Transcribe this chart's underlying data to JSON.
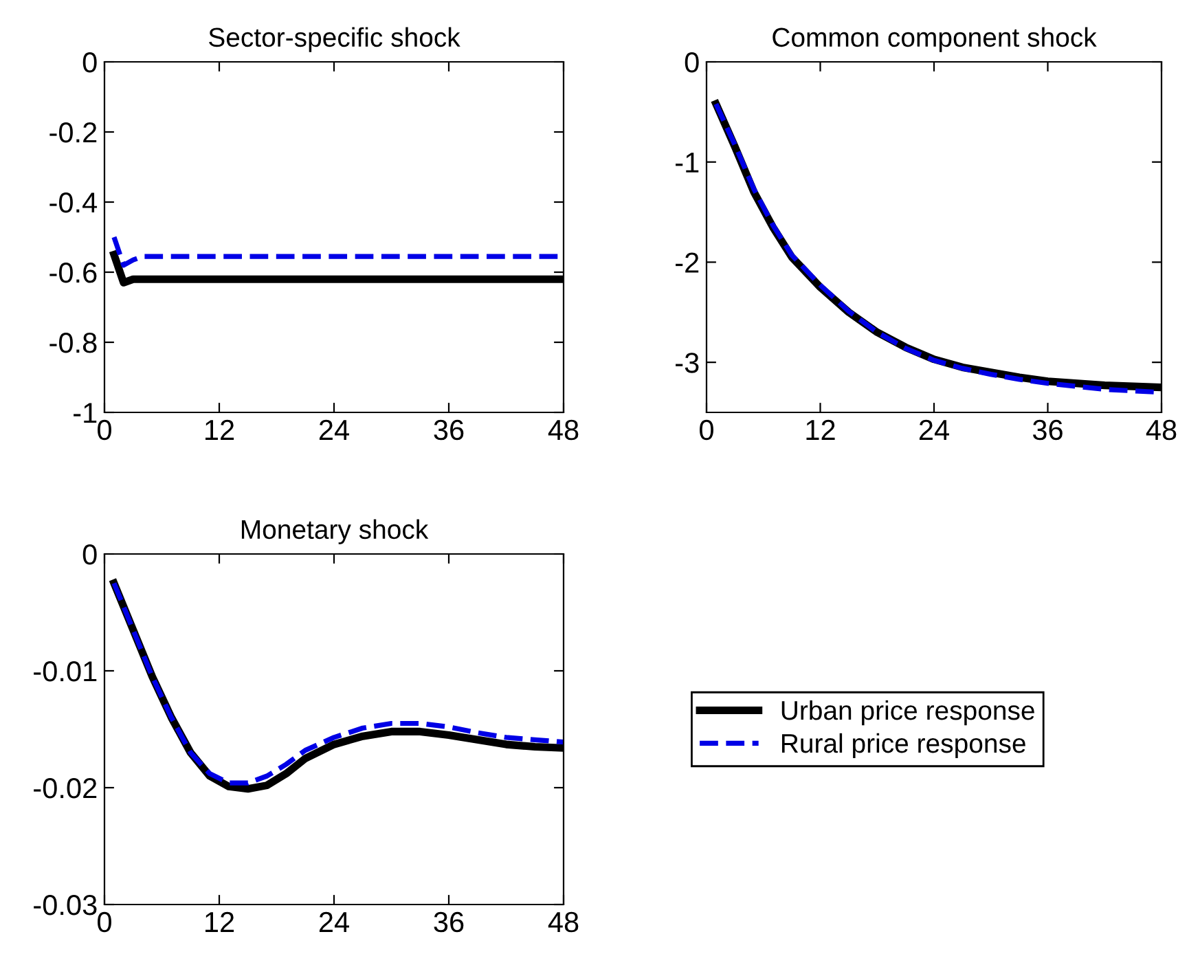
{
  "chart_data": [
    {
      "type": "line",
      "title": "Sector-specific shock",
      "xlim": [
        0,
        48
      ],
      "xticks": [
        0,
        12,
        24,
        36,
        48
      ],
      "ylim": [
        -1,
        0
      ],
      "yticks": [
        -1,
        -0.8,
        -0.6,
        -0.4,
        -0.2,
        0
      ],
      "grid": false,
      "legend": false,
      "series": [
        {
          "color": "#000000",
          "line_style": "solid",
          "x": [
            1,
            2,
            3,
            4,
            12,
            24,
            36,
            48
          ],
          "values": [
            -0.55,
            -0.63,
            -0.62,
            -0.62,
            -0.62,
            -0.62,
            -0.62,
            -0.62
          ]
        },
        {
          "color": "#0000e6",
          "line_style": "dashed",
          "x": [
            1,
            2,
            3,
            4,
            12,
            24,
            36,
            48
          ],
          "values": [
            -0.5,
            -0.58,
            -0.565,
            -0.555,
            -0.555,
            -0.555,
            -0.555,
            -0.555
          ]
        }
      ]
    },
    {
      "type": "line",
      "title": "Common component shock",
      "xlim": [
        0,
        48
      ],
      "xticks": [
        0,
        12,
        24,
        36,
        48
      ],
      "ylim": [
        -3.5,
        0
      ],
      "yticks": [
        -3,
        -2,
        -1,
        0
      ],
      "grid": false,
      "legend": false,
      "series": [
        {
          "color": "#000000",
          "line_style": "solid",
          "x": [
            1,
            3,
            5,
            7,
            9,
            12,
            15,
            18,
            21,
            24,
            27,
            30,
            33,
            36,
            42,
            48
          ],
          "values": [
            -0.42,
            -0.85,
            -1.3,
            -1.65,
            -1.95,
            -2.25,
            -2.5,
            -2.7,
            -2.85,
            -2.97,
            -3.05,
            -3.1,
            -3.15,
            -3.19,
            -3.23,
            -3.25
          ]
        },
        {
          "color": "#0000e6",
          "line_style": "dashed",
          "x": [
            1,
            3,
            5,
            7,
            9,
            12,
            15,
            18,
            21,
            24,
            27,
            30,
            33,
            36,
            42,
            48
          ],
          "values": [
            -0.42,
            -0.83,
            -1.27,
            -1.63,
            -1.93,
            -2.23,
            -2.49,
            -2.7,
            -2.86,
            -2.98,
            -3.06,
            -3.12,
            -3.17,
            -3.21,
            -3.27,
            -3.3
          ]
        }
      ]
    },
    {
      "type": "line",
      "title": "Monetary shock",
      "xlim": [
        0,
        48
      ],
      "xticks": [
        0,
        12,
        24,
        36,
        48
      ],
      "ylim": [
        -0.03,
        0
      ],
      "yticks": [
        -0.03,
        -0.02,
        -0.01,
        0
      ],
      "grid": false,
      "legend": "right",
      "series": [
        {
          "name": "Urban price response",
          "color": "#000000",
          "line_style": "solid",
          "x": [
            1,
            3,
            5,
            7,
            9,
            11,
            13,
            15,
            17,
            19,
            21,
            24,
            27,
            30,
            33,
            36,
            39,
            42,
            45,
            48
          ],
          "values": [
            -0.0025,
            -0.0065,
            -0.0105,
            -0.014,
            -0.017,
            -0.019,
            -0.0199,
            -0.0201,
            -0.0198,
            -0.0188,
            -0.0175,
            -0.0163,
            -0.0156,
            -0.0152,
            -0.0152,
            -0.0155,
            -0.0159,
            -0.0163,
            -0.0165,
            -0.0166
          ]
        },
        {
          "name": "Rural price response",
          "color": "#0000e6",
          "line_style": "dashed",
          "x": [
            1,
            3,
            5,
            7,
            9,
            11,
            13,
            15,
            17,
            19,
            21,
            24,
            27,
            30,
            33,
            36,
            39,
            42,
            45,
            48
          ],
          "values": [
            -0.0025,
            -0.0065,
            -0.0105,
            -0.014,
            -0.017,
            -0.0188,
            -0.0196,
            -0.0196,
            -0.019,
            -0.018,
            -0.0168,
            -0.0157,
            -0.0149,
            -0.0145,
            -0.0145,
            -0.0148,
            -0.0153,
            -0.0157,
            -0.0159,
            -0.0161
          ]
        }
      ]
    }
  ]
}
